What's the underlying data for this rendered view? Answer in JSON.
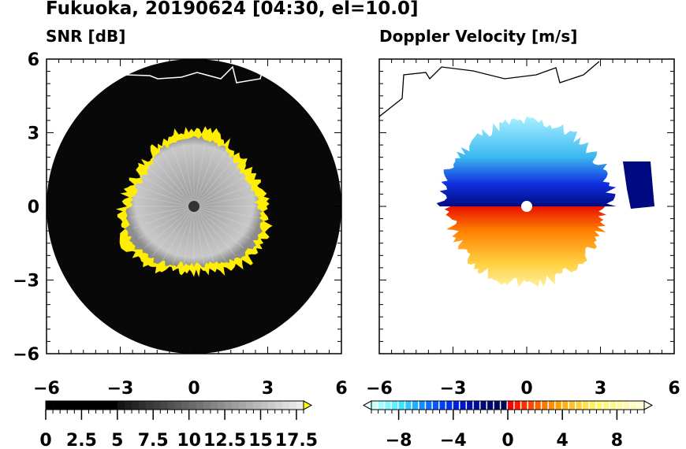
{
  "title": "Fukuoka, 20190624 [04:30, el=10.0]",
  "chart_data": [
    {
      "type": "heatmap",
      "subtitle": "SNR [dB]",
      "xlim": [
        -6,
        6
      ],
      "ylim": [
        -6,
        6
      ],
      "xticks": [
        "−6",
        "−3",
        "0",
        "3",
        "6"
      ],
      "yticks": [
        "6",
        "3",
        "0",
        "−3",
        "−6"
      ],
      "colorbar": {
        "min": 0,
        "max": 18,
        "step": 0.5,
        "ticks": [
          "0",
          "2.5",
          "5",
          "7.5",
          "10",
          "12.5",
          "15",
          "17.5"
        ],
        "extend": "max",
        "over_color": "#ffff00"
      },
      "description_range_km": 6
    },
    {
      "type": "heatmap",
      "subtitle": "Doppler Velocity [m/s]",
      "xlim": [
        -6,
        6
      ],
      "ylim": [
        -6,
        6
      ],
      "xticks": [
        "−6",
        "−3",
        "0",
        "3",
        "6"
      ],
      "colorbar": {
        "min": -10,
        "max": 10,
        "step": 0.5,
        "ticks": [
          "−8",
          "−4",
          "0",
          "4",
          "8"
        ],
        "extend": "both"
      }
    }
  ]
}
